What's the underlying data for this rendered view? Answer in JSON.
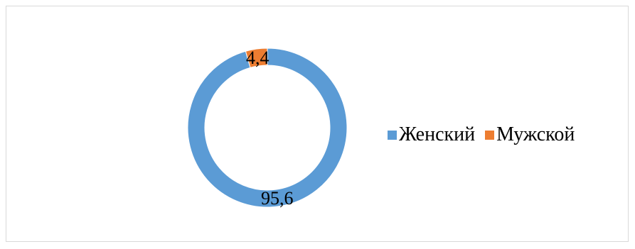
{
  "chart_data": {
    "type": "pie",
    "variant": "donut",
    "title": "",
    "categories": [
      "Женский",
      "Мужской"
    ],
    "values": [
      95.6,
      4.4
    ],
    "value_labels": [
      "95,6",
      "4,4"
    ],
    "colors": [
      "#5B9BD5",
      "#ED7D31"
    ],
    "legend_position": "right"
  }
}
